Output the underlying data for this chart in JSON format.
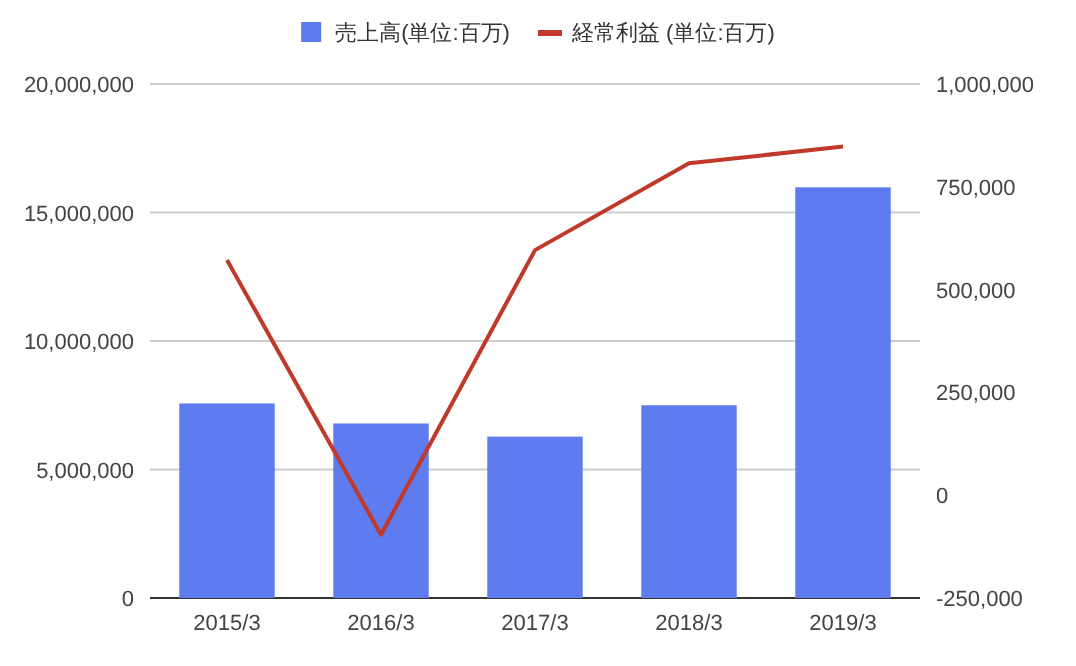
{
  "chart_data": {
    "type": "bar",
    "categories": [
      "2015/3",
      "2016/3",
      "2017/3",
      "2018/3",
      "2019/3"
    ],
    "series": [
      {
        "name": "売上高(単位:百万)",
        "color": "#5f7bf0",
        "values": [
          7570000,
          6790000,
          6280000,
          7500000,
          15980000
        ]
      },
      {
        "name": "経常利益 (単位:百万)",
        "type": "line",
        "axis": "y2",
        "color": "#c0392b",
        "values": [
          572000,
          -96000,
          596000,
          807000,
          848000
        ]
      }
    ],
    "ylim": [
      0,
      20000000
    ],
    "yticks": [
      {
        "value": 0,
        "label": "0"
      },
      {
        "value": 5000000,
        "label": "5,000,000"
      },
      {
        "value": 10000000,
        "label": "10,000,000"
      },
      {
        "value": 15000000,
        "label": "15,000,000"
      },
      {
        "value": 20000000,
        "label": "20,000,000"
      }
    ],
    "y2lim": [
      -250000,
      1000000
    ],
    "y2ticks": [
      {
        "value": -250000,
        "label": "-250,000"
      },
      {
        "value": 0,
        "label": "0"
      },
      {
        "value": 250000,
        "label": "250,000"
      },
      {
        "value": 500000,
        "label": "500,000"
      },
      {
        "value": 750000,
        "label": "750,000"
      },
      {
        "value": 1000000,
        "label": "1,000,000"
      }
    ],
    "grid": "y",
    "legend": "top",
    "marker": "none",
    "line_style": "solid"
  }
}
